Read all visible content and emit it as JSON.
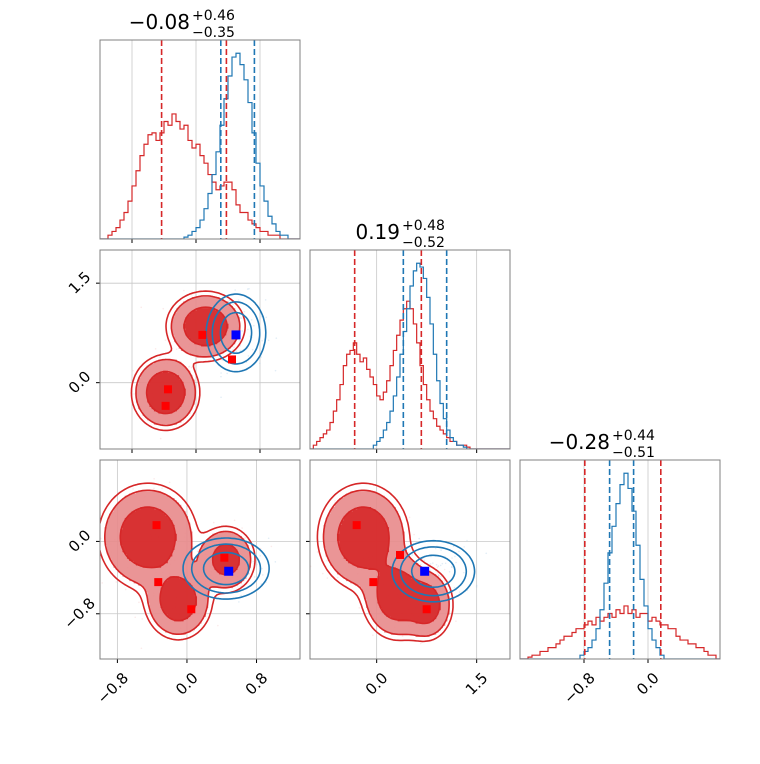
{
  "colors": {
    "red": "#d62728",
    "red_fill": "#e8898b",
    "red_light": "#f3c2c3",
    "blue": "#1f77b4",
    "blue_marker": "#0000ff",
    "red_marker": "#ff0000",
    "frame": "#808080",
    "grid": "#c8c8c8"
  },
  "chart_data": [
    {
      "type": "histogram",
      "panel": "diag-0",
      "title": {
        "main": "−0.08",
        "sup": "+0.46",
        "sub": "−0.35"
      },
      "xlim": [
        -1.2,
        1.3
      ],
      "xticks": [
        -0.8,
        0.0,
        0.8
      ],
      "series": [
        {
          "color": "red",
          "x": [
            -1.2,
            -1.15,
            -1.1,
            -1.05,
            -1.0,
            -0.95,
            -0.9,
            -0.85,
            -0.8,
            -0.75,
            -0.7,
            -0.65,
            -0.6,
            -0.55,
            -0.5,
            -0.45,
            -0.4,
            -0.35,
            -0.3,
            -0.25,
            -0.2,
            -0.15,
            -0.1,
            -0.05,
            0.0,
            0.05,
            0.1,
            0.15,
            0.2,
            0.25,
            0.3,
            0.35,
            0.4,
            0.45,
            0.5,
            0.55,
            0.6,
            0.65,
            0.7,
            0.75,
            0.8,
            0.85,
            0.9,
            0.95,
            1.0,
            1.05,
            1.1,
            1.15,
            1.2,
            1.25,
            1.3
          ],
          "y": [
            0.0,
            0.0,
            0.02,
            0.04,
            0.06,
            0.1,
            0.14,
            0.2,
            0.28,
            0.36,
            0.44,
            0.5,
            0.55,
            0.56,
            0.52,
            0.56,
            0.62,
            0.6,
            0.66,
            0.62,
            0.58,
            0.6,
            0.52,
            0.48,
            0.5,
            0.44,
            0.4,
            0.34,
            0.3,
            0.26,
            0.28,
            0.3,
            0.3,
            0.26,
            0.18,
            0.14,
            0.14,
            0.1,
            0.08,
            0.06,
            0.04,
            0.04,
            0.02,
            0.02,
            0.02,
            0.0,
            0.0,
            0.0,
            0.0,
            0.0,
            0.0
          ]
        },
        {
          "color": "blue",
          "x": [
            -1.2,
            -1.15,
            -1.1,
            -1.05,
            -1.0,
            -0.95,
            -0.9,
            -0.85,
            -0.8,
            -0.75,
            -0.7,
            -0.65,
            -0.6,
            -0.55,
            -0.5,
            -0.45,
            -0.4,
            -0.35,
            -0.3,
            -0.25,
            -0.2,
            -0.15,
            -0.1,
            -0.05,
            0.0,
            0.05,
            0.1,
            0.15,
            0.2,
            0.25,
            0.3,
            0.35,
            0.4,
            0.45,
            0.5,
            0.55,
            0.6,
            0.65,
            0.7,
            0.75,
            0.8,
            0.85,
            0.9,
            0.95,
            1.0,
            1.05,
            1.1,
            1.15,
            1.2,
            1.25,
            1.3
          ],
          "y": [
            0.0,
            0.0,
            0.0,
            0.0,
            0.0,
            0.0,
            0.0,
            0.0,
            0.0,
            0.0,
            0.0,
            0.0,
            0.0,
            0.0,
            0.0,
            0.0,
            0.0,
            0.0,
            0.0,
            0.0,
            0.0,
            0.01,
            0.02,
            0.04,
            0.06,
            0.1,
            0.16,
            0.24,
            0.34,
            0.46,
            0.6,
            0.74,
            0.86,
            0.96,
            0.98,
            0.92,
            0.84,
            0.72,
            0.56,
            0.4,
            0.28,
            0.2,
            0.12,
            0.08,
            0.04,
            0.02,
            0.02,
            0.0,
            0.0,
            0.0,
            0.0
          ]
        }
      ],
      "vlines": [
        {
          "x": -0.43,
          "color": "red"
        },
        {
          "x": 0.38,
          "color": "red"
        },
        {
          "x": 0.31,
          "color": "blue"
        },
        {
          "x": 0.73,
          "color": "blue"
        }
      ]
    },
    {
      "type": "histogram",
      "panel": "diag-1",
      "title": {
        "main": "0.19",
        "sup": "+0.48",
        "sub": "−0.52"
      },
      "xlim": [
        -1.0,
        2.0
      ],
      "xticks": [
        0.0,
        1.5
      ],
      "series": [
        {
          "color": "red",
          "x": [
            -1.0,
            -0.95,
            -0.9,
            -0.85,
            -0.8,
            -0.75,
            -0.7,
            -0.65,
            -0.6,
            -0.55,
            -0.5,
            -0.45,
            -0.4,
            -0.35,
            -0.3,
            -0.25,
            -0.2,
            -0.15,
            -0.1,
            -0.05,
            0.0,
            0.05,
            0.1,
            0.15,
            0.2,
            0.25,
            0.3,
            0.35,
            0.4,
            0.45,
            0.5,
            0.55,
            0.6,
            0.65,
            0.7,
            0.75,
            0.8,
            0.85,
            0.9,
            0.95,
            1.0,
            1.05,
            1.1,
            1.15,
            1.2,
            1.25,
            1.3,
            1.35,
            1.4,
            1.45,
            1.5,
            1.55,
            1.6,
            1.65,
            1.7,
            1.75,
            1.8,
            1.85,
            1.9,
            1.95,
            2.0
          ],
          "y": [
            0.0,
            0.02,
            0.04,
            0.06,
            0.08,
            0.1,
            0.14,
            0.2,
            0.26,
            0.34,
            0.44,
            0.5,
            0.52,
            0.56,
            0.5,
            0.46,
            0.48,
            0.42,
            0.38,
            0.34,
            0.28,
            0.26,
            0.3,
            0.36,
            0.44,
            0.52,
            0.6,
            0.68,
            0.74,
            0.78,
            0.74,
            0.66,
            0.56,
            0.44,
            0.34,
            0.26,
            0.2,
            0.16,
            0.12,
            0.1,
            0.08,
            0.06,
            0.04,
            0.04,
            0.02,
            0.02,
            0.02,
            0.01,
            0.0,
            0.0,
            0.0,
            0.0,
            0.0,
            0.0,
            0.0,
            0.0,
            0.0,
            0.0,
            0.0,
            0.0,
            0.0
          ]
        },
        {
          "color": "blue",
          "x": [
            -1.0,
            -0.95,
            -0.9,
            -0.85,
            -0.8,
            -0.75,
            -0.7,
            -0.65,
            -0.6,
            -0.55,
            -0.5,
            -0.45,
            -0.4,
            -0.35,
            -0.3,
            -0.25,
            -0.2,
            -0.15,
            -0.1,
            -0.05,
            0.0,
            0.05,
            0.1,
            0.15,
            0.2,
            0.25,
            0.3,
            0.35,
            0.4,
            0.45,
            0.5,
            0.55,
            0.6,
            0.65,
            0.7,
            0.75,
            0.8,
            0.85,
            0.9,
            0.95,
            1.0,
            1.05,
            1.1,
            1.15,
            1.2,
            1.25,
            1.3,
            1.35,
            1.4,
            1.45,
            1.5,
            1.55,
            1.6,
            1.65,
            1.7,
            1.75,
            1.8,
            1.85,
            1.9,
            1.95,
            2.0
          ],
          "y": [
            0.0,
            0.0,
            0.0,
            0.0,
            0.0,
            0.0,
            0.0,
            0.0,
            0.0,
            0.0,
            0.0,
            0.0,
            0.0,
            0.0,
            0.0,
            0.0,
            0.0,
            0.0,
            0.0,
            0.02,
            0.04,
            0.06,
            0.1,
            0.14,
            0.2,
            0.28,
            0.38,
            0.5,
            0.62,
            0.74,
            0.86,
            0.94,
            0.98,
            0.96,
            0.9,
            0.8,
            0.66,
            0.5,
            0.36,
            0.24,
            0.16,
            0.1,
            0.06,
            0.04,
            0.02,
            0.02,
            0.01,
            0.0,
            0.0,
            0.0,
            0.0,
            0.0,
            0.0,
            0.0,
            0.0,
            0.0,
            0.0,
            0.0,
            0.0,
            0.0,
            0.0
          ]
        }
      ],
      "vlines": [
        {
          "x": -0.33,
          "color": "red"
        },
        {
          "x": 0.67,
          "color": "red"
        },
        {
          "x": 0.4,
          "color": "blue"
        },
        {
          "x": 1.05,
          "color": "blue"
        }
      ]
    },
    {
      "type": "histogram",
      "panel": "diag-2",
      "title": {
        "main": "−0.28",
        "sup": "+0.44",
        "sub": "−0.51"
      },
      "xlim": [
        -1.6,
        0.9
      ],
      "xticks": [
        -0.8,
        0.0
      ],
      "series": [
        {
          "color": "red",
          "x": [
            -1.6,
            -1.55,
            -1.5,
            -1.45,
            -1.4,
            -1.35,
            -1.3,
            -1.25,
            -1.2,
            -1.15,
            -1.1,
            -1.05,
            -1.0,
            -0.95,
            -0.9,
            -0.85,
            -0.8,
            -0.75,
            -0.7,
            -0.65,
            -0.6,
            -0.55,
            -0.5,
            -0.45,
            -0.4,
            -0.35,
            -0.3,
            -0.25,
            -0.2,
            -0.15,
            -0.1,
            -0.05,
            0.0,
            0.05,
            0.1,
            0.15,
            0.2,
            0.25,
            0.3,
            0.35,
            0.4,
            0.45,
            0.5,
            0.55,
            0.6,
            0.65,
            0.7,
            0.75,
            0.8,
            0.85,
            0.9
          ],
          "y": [
            0.0,
            0.0,
            0.01,
            0.02,
            0.02,
            0.04,
            0.04,
            0.06,
            0.06,
            0.08,
            0.1,
            0.12,
            0.12,
            0.14,
            0.16,
            0.16,
            0.18,
            0.2,
            0.18,
            0.22,
            0.2,
            0.22,
            0.24,
            0.22,
            0.26,
            0.24,
            0.28,
            0.24,
            0.26,
            0.22,
            0.24,
            0.24,
            0.2,
            0.22,
            0.2,
            0.18,
            0.18,
            0.16,
            0.16,
            0.12,
            0.1,
            0.1,
            0.08,
            0.08,
            0.06,
            0.06,
            0.04,
            0.02,
            0.02,
            0.0,
            0.0
          ]
        },
        {
          "color": "blue",
          "x": [
            -1.6,
            -1.55,
            -1.5,
            -1.45,
            -1.4,
            -1.35,
            -1.3,
            -1.25,
            -1.2,
            -1.15,
            -1.1,
            -1.05,
            -1.0,
            -0.95,
            -0.9,
            -0.85,
            -0.8,
            -0.75,
            -0.7,
            -0.65,
            -0.6,
            -0.55,
            -0.5,
            -0.45,
            -0.4,
            -0.35,
            -0.3,
            -0.25,
            -0.2,
            -0.15,
            -0.1,
            -0.05,
            0.0,
            0.05,
            0.1,
            0.15,
            0.2,
            0.25,
            0.3,
            0.35,
            0.4,
            0.45,
            0.5,
            0.55,
            0.6,
            0.65,
            0.7,
            0.75,
            0.8,
            0.85,
            0.9
          ],
          "y": [
            0.0,
            0.0,
            0.0,
            0.0,
            0.0,
            0.0,
            0.0,
            0.0,
            0.0,
            0.0,
            0.0,
            0.0,
            0.0,
            0.0,
            0.0,
            0.02,
            0.04,
            0.06,
            0.1,
            0.16,
            0.26,
            0.4,
            0.56,
            0.7,
            0.82,
            0.92,
            0.98,
            0.9,
            0.78,
            0.6,
            0.42,
            0.28,
            0.16,
            0.1,
            0.06,
            0.02,
            0.0,
            0.0,
            0.0,
            0.0,
            0.0,
            0.0,
            0.0,
            0.0,
            0.0,
            0.0,
            0.0,
            0.0,
            0.0,
            0.0,
            0.0
          ]
        }
      ],
      "vlines": [
        {
          "x": -0.79,
          "color": "red"
        },
        {
          "x": 0.16,
          "color": "red"
        },
        {
          "x": -0.48,
          "color": "blue"
        },
        {
          "x": -0.18,
          "color": "blue"
        }
      ]
    },
    {
      "type": "contour",
      "panel": "lower-1-0",
      "xlim": [
        -1.2,
        1.3
      ],
      "ylim": [
        -1.0,
        2.0
      ],
      "yticks": [
        0.0,
        1.5
      ],
      "xticks": [
        -0.8,
        0.0,
        0.8
      ],
      "red_components": [
        {
          "cx": -0.38,
          "cy": -0.15,
          "rx": 0.36,
          "ry": 0.48,
          "w": 1.0
        },
        {
          "cx": 0.12,
          "cy": 0.85,
          "rx": 0.42,
          "ry": 0.45,
          "w": 0.95
        }
      ],
      "blue_components": [
        {
          "cx": 0.5,
          "cy": 0.75,
          "rx": 0.33,
          "ry": 0.52,
          "w": 1.0
        }
      ],
      "red_points": [
        [
          -0.35,
          -0.1
        ],
        [
          -0.38,
          -0.35
        ],
        [
          0.08,
          0.72
        ],
        [
          0.45,
          0.35
        ]
      ],
      "blue_points": [
        [
          0.5,
          0.72
        ]
      ]
    },
    {
      "type": "contour",
      "panel": "lower-2-0",
      "xlim": [
        -1.0,
        1.3
      ],
      "ylim": [
        -1.3,
        0.9
      ],
      "yticks": [
        -0.8,
        0.0
      ],
      "xticks": [
        -0.8,
        0.0,
        0.8
      ],
      "red_components": [
        {
          "cx": -0.45,
          "cy": 0.05,
          "rx": 0.48,
          "ry": 0.5,
          "w": 1.0
        },
        {
          "cx": -0.1,
          "cy": -0.65,
          "rx": 0.34,
          "ry": 0.38,
          "w": 0.85
        },
        {
          "cx": 0.45,
          "cy": -0.2,
          "rx": 0.3,
          "ry": 0.33,
          "w": 0.7
        }
      ],
      "blue_components": [
        {
          "cx": 0.45,
          "cy": -0.3,
          "rx": 0.44,
          "ry": 0.3,
          "w": 1.0
        }
      ],
      "red_points": [
        [
          -0.35,
          0.18
        ],
        [
          -0.33,
          -0.45
        ],
        [
          0.05,
          -0.75
        ],
        [
          0.43,
          -0.18
        ]
      ],
      "blue_points": [
        [
          0.48,
          -0.33
        ]
      ]
    },
    {
      "type": "contour",
      "panel": "lower-2-1",
      "xlim": [
        -1.0,
        2.0
      ],
      "ylim": [
        -1.3,
        0.9
      ],
      "yticks": [
        -0.8,
        0.0
      ],
      "xticks": [
        0.0,
        1.5
      ],
      "red_components": [
        {
          "cx": -0.2,
          "cy": 0.05,
          "rx": 0.58,
          "ry": 0.5,
          "w": 1.0
        },
        {
          "cx": 0.3,
          "cy": -0.6,
          "rx": 0.45,
          "ry": 0.42,
          "w": 0.9
        },
        {
          "cx": 0.75,
          "cy": -0.7,
          "rx": 0.35,
          "ry": 0.35,
          "w": 0.75
        }
      ],
      "blue_components": [
        {
          "cx": 0.85,
          "cy": -0.33,
          "rx": 0.55,
          "ry": 0.3,
          "w": 1.0
        }
      ],
      "red_points": [
        [
          -0.3,
          0.18
        ],
        [
          -0.05,
          -0.45
        ],
        [
          0.35,
          -0.15
        ],
        [
          0.75,
          -0.75
        ]
      ],
      "blue_points": [
        [
          0.72,
          -0.33
        ]
      ]
    }
  ]
}
